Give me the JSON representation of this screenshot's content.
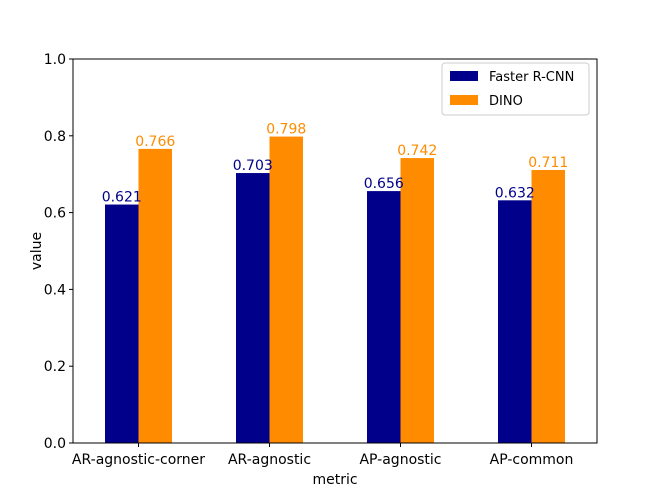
{
  "chart_data": {
    "type": "bar",
    "title": "",
    "xlabel": "metric",
    "ylabel": "value",
    "ylim": [
      0,
      1.0
    ],
    "yticks": [
      0.0,
      0.2,
      0.4,
      0.6,
      0.8,
      1.0
    ],
    "ytick_labels": [
      "0.0",
      "0.2",
      "0.4",
      "0.6",
      "0.8",
      "1.0"
    ],
    "categories": [
      "AR-agnostic-corner",
      "AR-agnostic",
      "AP-agnostic",
      "AP-common"
    ],
    "series": [
      {
        "name": "Faster R-CNN",
        "color": "#00008b",
        "values": [
          0.621,
          0.703,
          0.656,
          0.632
        ],
        "labels": [
          "0.621",
          "0.703",
          "0.656",
          "0.632"
        ]
      },
      {
        "name": "DINO",
        "color": "#ff8c00",
        "values": [
          0.766,
          0.798,
          0.742,
          0.711
        ],
        "labels": [
          "0.766",
          "0.798",
          "0.742",
          "0.711"
        ]
      }
    ],
    "legend_position": "top-right",
    "grid": false
  }
}
